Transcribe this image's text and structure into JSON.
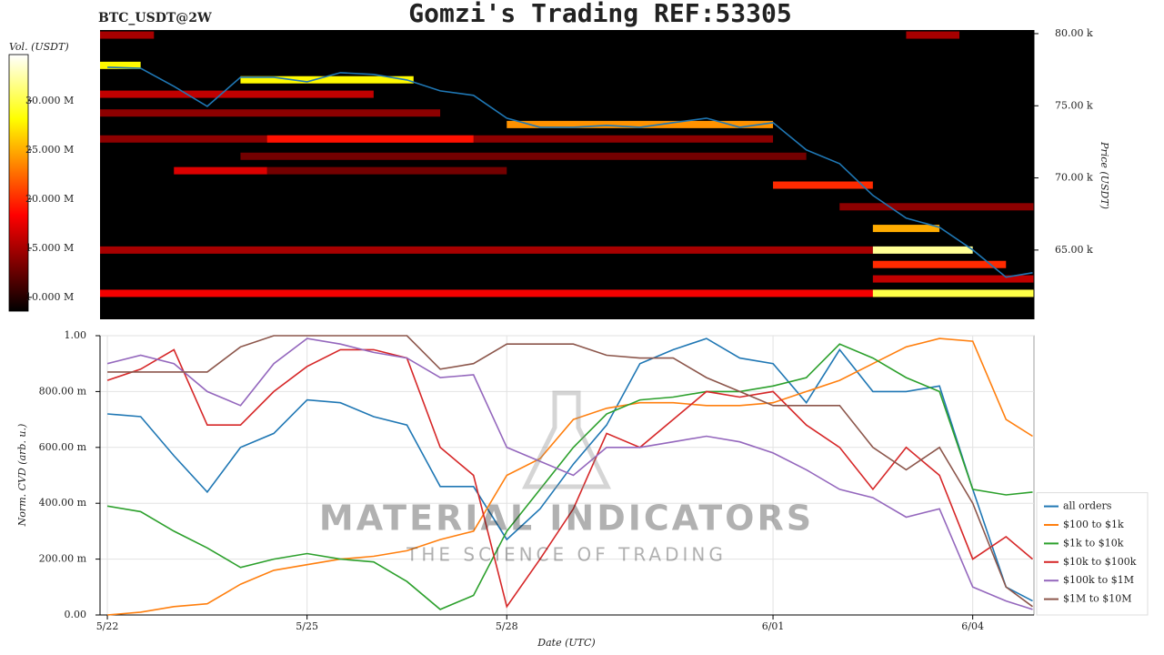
{
  "watermark": {
    "title": "MATERIAL INDICATORS",
    "subtitle": "THE SCIENCE OF TRADING"
  },
  "chart_data": [
    {
      "type": "heatmap",
      "title": "Gomzi's Trading REF:53305",
      "subtitle": "BTC_USDT@2W",
      "y_label": "Price (USDT)",
      "colorbar_label": "Vol. (USDT)",
      "xlim": [
        -0.11,
        13.92
      ],
      "ylim": [
        60200,
        80250
      ],
      "yticks": [
        {
          "value": 65000,
          "label": "65.00 k"
        },
        {
          "value": 70000,
          "label": "70.00 k"
        },
        {
          "value": 75000,
          "label": "75.00 k"
        },
        {
          "value": 80000,
          "label": "80.00 k"
        }
      ],
      "clim": [
        8600000,
        34700000
      ],
      "cticks": [
        {
          "value": 10000000,
          "label": "10.000 M"
        },
        {
          "value": 15000000,
          "label": "15.000 M"
        },
        {
          "value": 20000000,
          "label": "20.000 M"
        },
        {
          "value": 25000000,
          "label": "25.000 M"
        },
        {
          "value": 30000000,
          "label": "30.000 M"
        }
      ],
      "levels": [
        {
          "price": 62000,
          "start": -0.11,
          "end": 13.92,
          "volume": 18000000
        },
        {
          "price": 62000,
          "start": 11.5,
          "end": 13.92,
          "volume": 30000000
        },
        {
          "price": 65000,
          "start": -0.11,
          "end": 11.5,
          "volume": 15000000
        },
        {
          "price": 65000,
          "start": 11.5,
          "end": 13.0,
          "volume": 32000000
        },
        {
          "price": 64000,
          "start": 11.5,
          "end": 13.5,
          "volume": 20000000
        },
        {
          "price": 63000,
          "start": 11.5,
          "end": 13.92,
          "volume": 16000000
        },
        {
          "price": 66500,
          "start": 11.5,
          "end": 12.5,
          "volume": 25000000
        },
        {
          "price": 68000,
          "start": 11.0,
          "end": 13.92,
          "volume": 14000000
        },
        {
          "price": 69500,
          "start": 10.0,
          "end": 11.5,
          "volume": 20000000
        },
        {
          "price": 70500,
          "start": 2.4,
          "end": 6.0,
          "volume": 13000000
        },
        {
          "price": 70500,
          "start": 1.0,
          "end": 2.4,
          "volume": 17000000
        },
        {
          "price": 71500,
          "start": 2.0,
          "end": 10.5,
          "volume": 13000000
        },
        {
          "price": 72700,
          "start": -0.11,
          "end": 10.0,
          "volume": 14000000
        },
        {
          "price": 72700,
          "start": 2.4,
          "end": 5.5,
          "volume": 19000000
        },
        {
          "price": 73700,
          "start": 6.0,
          "end": 10.0,
          "volume": 24000000
        },
        {
          "price": 74500,
          "start": -0.11,
          "end": 5.0,
          "volume": 14000000
        },
        {
          "price": 75800,
          "start": -0.11,
          "end": 4.0,
          "volume": 16000000
        },
        {
          "price": 76800,
          "start": 2.0,
          "end": 4.6,
          "volume": 28000000
        },
        {
          "price": 77800,
          "start": -0.11,
          "end": 0.5,
          "volume": 28000000
        },
        {
          "price": 79900,
          "start": -0.11,
          "end": 0.7,
          "volume": 15000000
        },
        {
          "price": 79900,
          "start": 12.0,
          "end": 12.8,
          "volume": 15000000
        }
      ],
      "line": {
        "color": "#1f77b4",
        "x": [
          0,
          0.5,
          1,
          1.5,
          2,
          2.5,
          3,
          3.5,
          4,
          4.5,
          5,
          5.5,
          6,
          6.5,
          7,
          7.5,
          8,
          8.5,
          9,
          9.5,
          10,
          10.5,
          11,
          11.5,
          12,
          12.5,
          13,
          13.5,
          13.9
        ],
        "values": [
          77670,
          77600,
          76350,
          74960,
          76980,
          76980,
          76660,
          77290,
          77170,
          76790,
          76030,
          75720,
          74140,
          73510,
          73510,
          73640,
          73510,
          73830,
          74140,
          73510,
          73830,
          71940,
          70990,
          68790,
          67210,
          66580,
          65010,
          63120,
          63430
        ]
      }
    },
    {
      "type": "line",
      "x_label": "Date (UTC)",
      "y_label": "Norm. CVD (arb. u.)",
      "x": [
        0,
        0.5,
        1,
        1.5,
        2,
        2.5,
        3,
        3.5,
        4,
        4.5,
        5,
        5.5,
        6,
        6.5,
        7,
        7.5,
        8,
        8.5,
        9,
        9.5,
        10,
        10.5,
        11,
        11.5,
        12,
        12.5,
        13,
        13.5,
        13.9
      ],
      "xlim": [
        -0.11,
        13.92
      ],
      "xticks": [
        {
          "value": 0,
          "label": "5/22"
        },
        {
          "value": 3,
          "label": "5/25"
        },
        {
          "value": 6,
          "label": "5/28"
        },
        {
          "value": 10,
          "label": "6/01"
        },
        {
          "value": 13,
          "label": "6/04"
        }
      ],
      "ylim": [
        0,
        1
      ],
      "yticks": [
        {
          "value": 0,
          "label": "0.00"
        },
        {
          "value": 0.2,
          "label": "200.00 m"
        },
        {
          "value": 0.4,
          "label": "400.00 m"
        },
        {
          "value": 0.6,
          "label": "600.00 m"
        },
        {
          "value": 0.8,
          "label": "800.00 m"
        },
        {
          "value": 1,
          "label": "1.00"
        }
      ],
      "grid": true,
      "legend": "lower right",
      "series": [
        {
          "name": "all orders",
          "color": "#1f77b4",
          "values": [
            0.72,
            0.71,
            0.57,
            0.44,
            0.6,
            0.65,
            0.77,
            0.76,
            0.71,
            0.68,
            0.46,
            0.46,
            0.27,
            0.38,
            0.54,
            0.68,
            0.9,
            0.95,
            0.99,
            0.92,
            0.9,
            0.76,
            0.95,
            0.8,
            0.8,
            0.82,
            0.45,
            0.1,
            0.05
          ]
        },
        {
          "name": "$100 to $1k",
          "color": "#ff7f0e",
          "values": [
            0.0,
            0.01,
            0.03,
            0.04,
            0.11,
            0.16,
            0.18,
            0.2,
            0.21,
            0.23,
            0.27,
            0.3,
            0.5,
            0.56,
            0.7,
            0.74,
            0.76,
            0.76,
            0.75,
            0.75,
            0.76,
            0.8,
            0.84,
            0.9,
            0.96,
            0.99,
            0.98,
            0.7,
            0.64
          ]
        },
        {
          "name": "$1k to $10k",
          "color": "#2ca02c",
          "values": [
            0.39,
            0.37,
            0.3,
            0.24,
            0.17,
            0.2,
            0.22,
            0.2,
            0.19,
            0.12,
            0.02,
            0.07,
            0.3,
            0.45,
            0.6,
            0.72,
            0.77,
            0.78,
            0.8,
            0.8,
            0.82,
            0.85,
            0.97,
            0.92,
            0.85,
            0.8,
            0.45,
            0.43,
            0.44
          ]
        },
        {
          "name": "$10k to $100k",
          "color": "#d62728",
          "values": [
            0.84,
            0.88,
            0.95,
            0.68,
            0.68,
            0.8,
            0.89,
            0.95,
            0.95,
            0.92,
            0.6,
            0.5,
            0.03,
            0.2,
            0.38,
            0.65,
            0.6,
            0.7,
            0.8,
            0.78,
            0.8,
            0.68,
            0.6,
            0.45,
            0.6,
            0.5,
            0.2,
            0.28,
            0.2
          ]
        },
        {
          "name": "$100k to $1M",
          "color": "#9467bd",
          "values": [
            0.9,
            0.93,
            0.9,
            0.8,
            0.75,
            0.9,
            0.99,
            0.97,
            0.94,
            0.92,
            0.85,
            0.86,
            0.6,
            0.55,
            0.5,
            0.6,
            0.6,
            0.62,
            0.64,
            0.62,
            0.58,
            0.52,
            0.45,
            0.42,
            0.35,
            0.38,
            0.1,
            0.05,
            0.02
          ]
        },
        {
          "name": "$1M to $10M",
          "color": "#8c564b",
          "values": [
            0.87,
            0.87,
            0.87,
            0.87,
            0.96,
            1.0,
            1.0,
            1.0,
            1.0,
            1.0,
            0.88,
            0.9,
            0.97,
            0.97,
            0.97,
            0.93,
            0.92,
            0.92,
            0.85,
            0.8,
            0.75,
            0.75,
            0.75,
            0.6,
            0.52,
            0.6,
            0.4,
            0.1,
            0.03
          ]
        }
      ]
    }
  ]
}
